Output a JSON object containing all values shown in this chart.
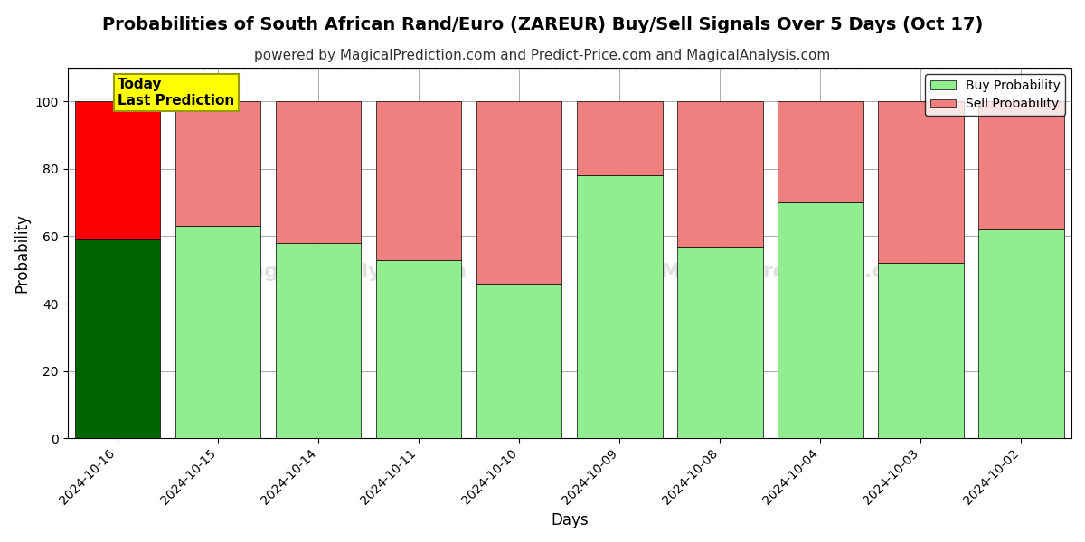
{
  "title": "Probabilities of South African Rand/Euro (ZAREUR) Buy/Sell Signals Over 5 Days (Oct 17)",
  "subtitle": "powered by MagicalPrediction.com and Predict-Price.com and MagicalAnalysis.com",
  "xlabel": "Days",
  "ylabel": "Probability",
  "categories": [
    "2024-10-16",
    "2024-10-15",
    "2024-10-14",
    "2024-10-11",
    "2024-10-10",
    "2024-10-09",
    "2024-10-08",
    "2024-10-04",
    "2024-10-03",
    "2024-10-02"
  ],
  "buy_values": [
    59,
    63,
    58,
    53,
    46,
    78,
    57,
    70,
    52,
    62
  ],
  "sell_values": [
    41,
    37,
    42,
    47,
    54,
    22,
    43,
    30,
    48,
    38
  ],
  "today_idx": 0,
  "buy_color_today": "#006400",
  "sell_color_today": "#ff0000",
  "buy_color_normal": "#90ee90",
  "sell_color_normal": "#f08080",
  "bar_edge_color": "#000000",
  "background_color": "#ffffff",
  "ylim": [
    0,
    110
  ],
  "yticks": [
    0,
    20,
    40,
    60,
    80,
    100
  ],
  "dashed_line_y": 110,
  "grid_color": "#aaaaaa",
  "today_label_text": "Today\nLast Prediction",
  "today_label_bg": "#ffff00",
  "legend_buy_label": "Buy Probability",
  "legend_sell_label": "Sell Probability",
  "title_fontsize": 14,
  "subtitle_fontsize": 11,
  "axis_label_fontsize": 12,
  "tick_fontsize": 10
}
